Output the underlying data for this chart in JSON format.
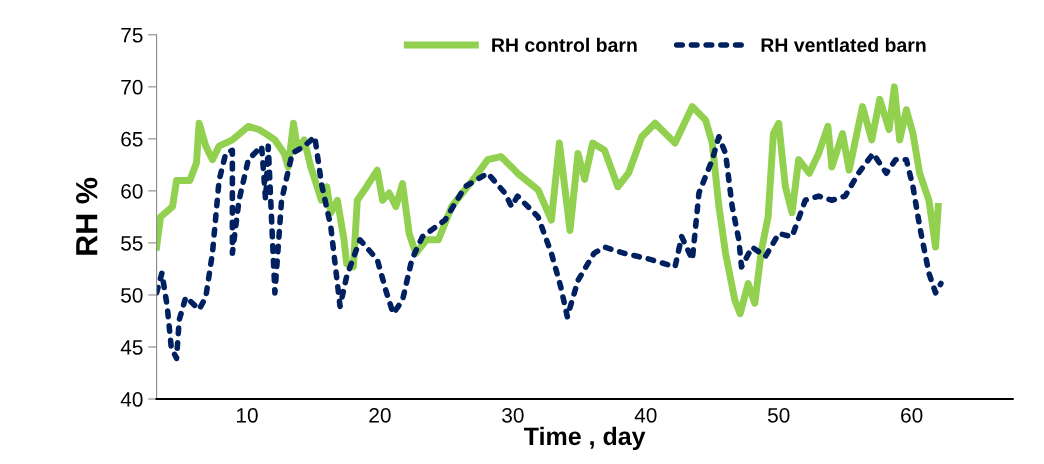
{
  "chart_data": {
    "type": "line",
    "xlabel": "Time , day",
    "ylabel": "RH %",
    "xlim": [
      3.2,
      67.6
    ],
    "xticks": [
      10,
      20,
      30,
      40,
      50,
      60
    ],
    "ylim": [
      40,
      75
    ],
    "yticks": [
      40,
      45,
      50,
      55,
      60,
      65,
      70,
      75
    ],
    "grid": false,
    "legend": "top right",
    "series": [
      {
        "name": "RH control barn",
        "color": "#92d050",
        "line_style": "solid",
        "x": [
          3.2,
          3.5,
          4.4,
          4.7,
          5.7,
          6.2,
          6.4,
          6.9,
          7.4,
          7.9,
          8.9,
          10.1,
          10.9,
          11.4,
          12.1,
          12.8,
          13.1,
          13.5,
          13.8,
          14.3,
          14.8,
          15.6,
          16,
          16.3,
          16.8,
          17.3,
          17.5,
          18,
          18.3,
          19,
          19.8,
          20.2,
          20.7,
          21.2,
          21.7,
          22.2,
          22.7,
          23.5,
          24.4,
          25.4,
          26.2,
          27.2,
          28.1,
          29.1,
          29.9,
          30.35,
          31.9,
          32.9,
          33.5,
          34.3,
          34.9,
          35.4,
          36,
          36.9,
          37.9,
          38.7,
          39.7,
          40.7,
          42.2,
          43.5,
          44.5,
          45,
          45.5,
          46,
          46.7,
          47.1,
          47.7,
          48.2,
          48.7,
          49.2,
          49.6,
          50,
          50.5,
          51,
          51.5,
          52.3,
          53,
          53.7,
          54,
          54.8,
          55.3,
          56.3,
          57,
          57.6,
          58.3,
          58.7,
          59.1,
          59.6,
          60.1,
          60.6,
          61.3,
          61.8,
          62
        ],
        "values": [
          54.6,
          57.5,
          58.5,
          61,
          61,
          62.7,
          66.5,
          64.3,
          63,
          64.3,
          64.9,
          66.2,
          65.9,
          65.5,
          64.9,
          63.6,
          62.3,
          66.5,
          64,
          64.9,
          62.3,
          59.1,
          60.4,
          57.9,
          59.1,
          55.3,
          53,
          52.7,
          59.1,
          60.4,
          62,
          59.1,
          59.8,
          58.5,
          60.7,
          55.9,
          54,
          55.3,
          55.3,
          58.5,
          59.8,
          61.4,
          63,
          63.3,
          62.3,
          61.7,
          60.1,
          57.2,
          64.6,
          56.2,
          63.6,
          61.1,
          64.6,
          63.9,
          60.4,
          61.7,
          65.2,
          66.5,
          64.6,
          68.1,
          66.8,
          64.6,
          58.5,
          54,
          49.5,
          48.2,
          51.1,
          49.2,
          54.3,
          57.5,
          65.5,
          66.5,
          60.4,
          57.9,
          63,
          61.7,
          63.6,
          66.2,
          62.3,
          65.5,
          62,
          68.1,
          64.9,
          68.8,
          65.9,
          70,
          64.9,
          67.8,
          65.5,
          61.7,
          59.1,
          54.6,
          58.5
        ]
      },
      {
        "name": "RH ventlated barn",
        "color": "#002060",
        "line_style": "dotted",
        "x": [
          3.2,
          3.6,
          4,
          4.3,
          4.7,
          4.9,
          5.4,
          6.4,
          6.9,
          7.4,
          7.9,
          8.4,
          8.9,
          8.9,
          9.4,
          10.1,
          11.1,
          11.4,
          11.6,
          12.1,
          12.6,
          13.4,
          14.3,
          15.1,
          15.6,
          16.3,
          17,
          17.5,
          18.5,
          19.8,
          20.5,
          21,
          21.7,
          22.4,
          23.2,
          24.9,
          26.4,
          28.1,
          29.4,
          29.9,
          30.35,
          31.9,
          32.9,
          33.6,
          34.1,
          34.9,
          36.1,
          36.9,
          38.4,
          40.4,
          42.2,
          42.7,
          43.5,
          44,
          45,
          45.5,
          46,
          46.5,
          47,
          47.2,
          48,
          49,
          50,
          51,
          52,
          53,
          54,
          55,
          56,
          57.1,
          58.1,
          58.8,
          59.6,
          60.1,
          60.6,
          61.3,
          61.8,
          62.2
        ],
        "values": [
          50.2,
          52.1,
          48.9,
          45,
          43.9,
          47.6,
          49.8,
          48.6,
          49.8,
          54,
          61,
          63.6,
          63.9,
          54,
          59.1,
          63,
          64.3,
          59.1,
          64.3,
          50.2,
          59.1,
          63.6,
          64.3,
          65.2,
          60.7,
          56.6,
          48.9,
          51.8,
          55.3,
          53.4,
          50.2,
          48.2,
          49.5,
          53.4,
          55.6,
          57.2,
          60.4,
          61.7,
          59.8,
          58.5,
          59.5,
          57.5,
          54,
          50.8,
          47.9,
          51.4,
          54,
          54.6,
          54,
          53.4,
          52.7,
          55.6,
          53.4,
          59.8,
          63,
          65.2,
          63.6,
          58.5,
          55.3,
          52.7,
          54.6,
          53.7,
          55.9,
          55.6,
          59.1,
          59.5,
          59.1,
          59.5,
          61.7,
          63.6,
          61.7,
          63,
          63,
          60.4,
          56.6,
          52.1,
          50.2,
          51.1
        ]
      }
    ]
  }
}
